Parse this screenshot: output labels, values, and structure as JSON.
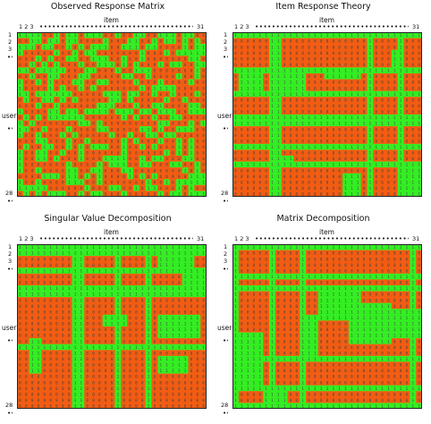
{
  "colors": {
    "positive": "#33ee22",
    "negative": "#f25c12",
    "digit": "#444444",
    "border": "#222222"
  },
  "axis": {
    "col_label": "item",
    "row_label": "user",
    "col_ticks": [
      "1",
      "2",
      "3",
      "31"
    ],
    "row_ticks": [
      "1",
      "2",
      "3",
      "28"
    ],
    "ellipsis": "•"
  },
  "panels": [
    {
      "title": "Observed Response Matrix",
      "seed": 11,
      "pattern": "noise"
    },
    {
      "title": "Item Response Theory",
      "seed": 23,
      "pattern": "structured"
    },
    {
      "title": "Singular Value Decomposition",
      "seed": 37,
      "pattern": "structured"
    },
    {
      "title": "Matrix Decomposition",
      "seed": 41,
      "pattern": "structured"
    }
  ],
  "matrix_shape": {
    "rows": 28,
    "cols": 31
  }
}
